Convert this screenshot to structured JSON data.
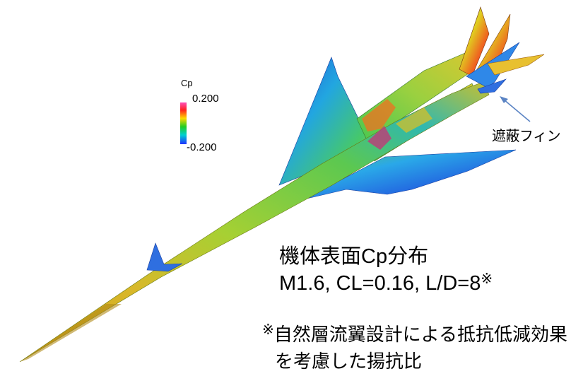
{
  "colormap": {
    "title": "Cp",
    "max_label": "0.200",
    "min_label": "-0.200",
    "max_value": 0.2,
    "min_value": -0.2,
    "stops": [
      "#ff4fb8",
      "#ff2020",
      "#ffd800",
      "#22cc22",
      "#00d0d0",
      "#2030ff"
    ]
  },
  "fin_label": "遮蔽フィン",
  "title": {
    "line1": "機体表面Cp分布",
    "line2": "M1.6, CL=0.16, L/D=8",
    "note_mark": "※"
  },
  "note": {
    "mark": "※",
    "line1": "自然層流翼設計による抵抗低減効果",
    "line2": "を考慮した揚抗比"
  },
  "colors": {
    "arrow": "#5b84c4",
    "nose": "#c8a020",
    "fuselage": "#8ccc30",
    "wing": "#2f6fe0"
  }
}
